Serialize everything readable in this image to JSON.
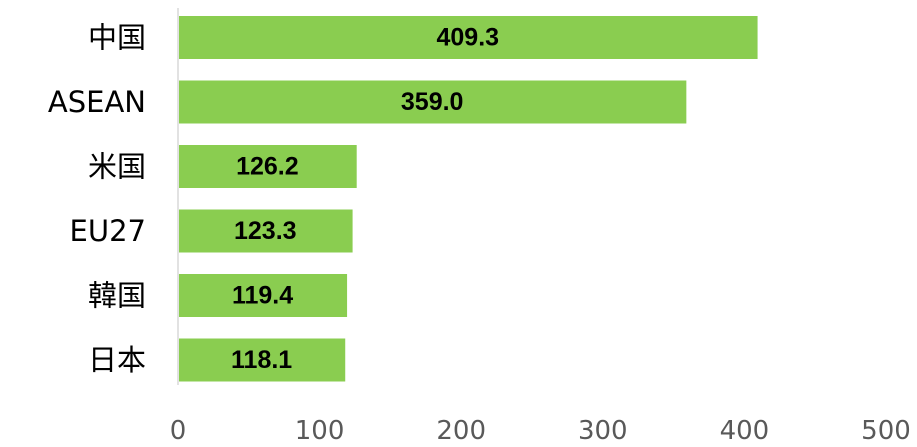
{
  "chart_data": {
    "type": "bar",
    "orientation": "horizontal",
    "categories": [
      "中国",
      "ASEAN",
      "米国",
      "EU27",
      "韓国",
      "日本"
    ],
    "values": [
      409.3,
      359.0,
      126.2,
      123.3,
      119.4,
      118.1
    ],
    "value_labels": [
      "409.3",
      "359.0",
      "126.2",
      "123.3",
      "119.4",
      "118.1"
    ],
    "xlim": [
      0,
      500
    ],
    "x_ticks": [
      0,
      100,
      200,
      300,
      400,
      500
    ],
    "x_tick_labels": [
      "0",
      "100",
      "200",
      "300",
      "400",
      "500"
    ],
    "bar_color": "#8ACD50",
    "grid": false,
    "legend": "none"
  }
}
